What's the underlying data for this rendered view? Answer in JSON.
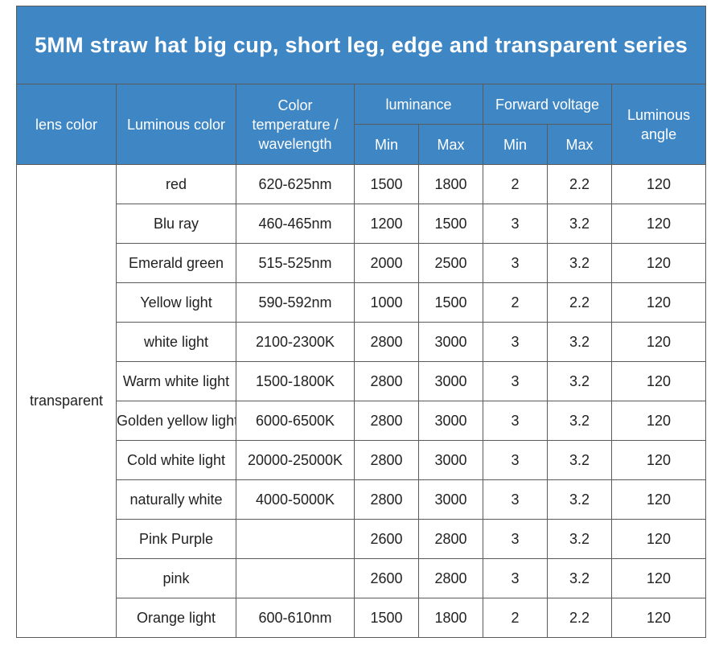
{
  "title": "5MM straw hat big cup, short leg, edge and transparent series",
  "headers": {
    "lens_color": "lens color",
    "luminous_color": "Luminous color",
    "color_temp": "Color temperature / wavelength",
    "luminance": "luminance",
    "forward_voltage": "Forward voltage",
    "luminous_angle": "Luminous angle",
    "min": "Min",
    "max": "Max"
  },
  "lens_value": "transparent",
  "rows": [
    {
      "color": "red",
      "temp": "620-625nm",
      "lum_min": "1500",
      "lum_max": "1800",
      "fv_min": "2",
      "fv_max": "2.2",
      "angle": "120"
    },
    {
      "color": "Blu ray",
      "temp": "460-465nm",
      "lum_min": "1200",
      "lum_max": "1500",
      "fv_min": "3",
      "fv_max": "3.2",
      "angle": "120"
    },
    {
      "color": "Emerald green",
      "temp": "515-525nm",
      "lum_min": "2000",
      "lum_max": "2500",
      "fv_min": "3",
      "fv_max": "3.2",
      "angle": "120"
    },
    {
      "color": "Yellow light",
      "temp": "590-592nm",
      "lum_min": "1000",
      "lum_max": "1500",
      "fv_min": "2",
      "fv_max": "2.2",
      "angle": "120"
    },
    {
      "color": "white light",
      "temp": "2100-2300K",
      "lum_min": "2800",
      "lum_max": "3000",
      "fv_min": "3",
      "fv_max": "3.2",
      "angle": "120"
    },
    {
      "color": "Warm white light",
      "temp": "1500-1800K",
      "lum_min": "2800",
      "lum_max": "3000",
      "fv_min": "3",
      "fv_max": "3.2",
      "angle": "120"
    },
    {
      "color": "Golden yellow light",
      "temp": "6000-6500K",
      "lum_min": "2800",
      "lum_max": "3000",
      "fv_min": "3",
      "fv_max": "3.2",
      "angle": "120"
    },
    {
      "color": "Cold white light",
      "temp": "20000-25000K",
      "lum_min": "2800",
      "lum_max": "3000",
      "fv_min": "3",
      "fv_max": "3.2",
      "angle": "120"
    },
    {
      "color": "naturally white",
      "temp": "4000-5000K",
      "lum_min": "2800",
      "lum_max": "3000",
      "fv_min": "3",
      "fv_max": "3.2",
      "angle": "120"
    },
    {
      "color": "Pink Purple",
      "temp": "",
      "lum_min": "2600",
      "lum_max": "2800",
      "fv_min": "3",
      "fv_max": "3.2",
      "angle": "120"
    },
    {
      "color": "pink",
      "temp": "",
      "lum_min": "2600",
      "lum_max": "2800",
      "fv_min": "3",
      "fv_max": "3.2",
      "angle": "120"
    },
    {
      "color": "Orange light",
      "temp": "600-610nm",
      "lum_min": "1500",
      "lum_max": "1800",
      "fv_min": "2",
      "fv_max": "2.2",
      "angle": "120"
    }
  ],
  "colors": {
    "header_bg": "#3f86c5",
    "header_text": "#ffffff",
    "border": "#5a5a5a"
  }
}
